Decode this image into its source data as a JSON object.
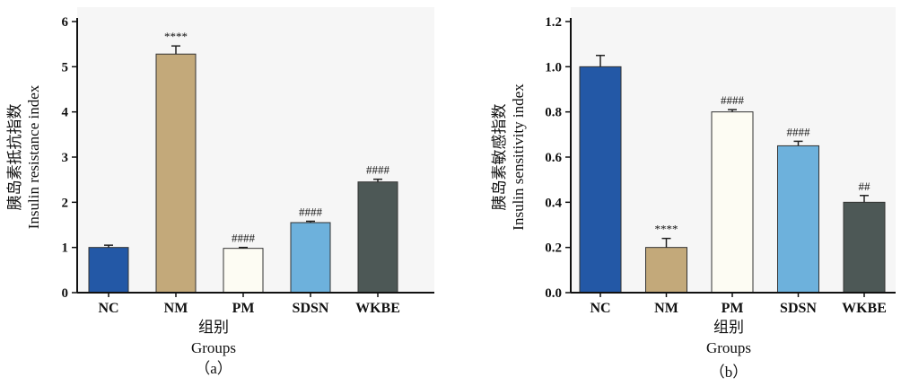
{
  "chart_data": [
    {
      "type": "bar",
      "panel_label": "（a）",
      "categories": [
        "NC",
        "NM",
        "PM",
        "SDSN",
        "WKBE"
      ],
      "values": [
        1.0,
        5.28,
        0.98,
        1.55,
        2.45
      ],
      "errors": [
        0.05,
        0.18,
        0.02,
        0.03,
        0.06
      ],
      "annotations": [
        "",
        "****",
        "####",
        "####",
        "####"
      ],
      "colors": [
        "#2358a6",
        "#c3a97a",
        "#fdfcf3",
        "#6db1dc",
        "#4d5856"
      ],
      "ylabel_cn": "胰岛素抵抗指数",
      "ylabel_en": "Insulin resistance index",
      "xlabel_cn": "组别",
      "xlabel_en": "Groups",
      "ylim": [
        0,
        6
      ],
      "yticks": [
        "0",
        "1",
        "2",
        "3",
        "4",
        "5",
        "6"
      ]
    },
    {
      "type": "bar",
      "panel_label": "（b）",
      "categories": [
        "NC",
        "NM",
        "PM",
        "SDSN",
        "WKBE"
      ],
      "values": [
        1.0,
        0.2,
        0.8,
        0.65,
        0.4
      ],
      "errors": [
        0.05,
        0.04,
        0.01,
        0.02,
        0.03
      ],
      "annotations": [
        "",
        "****",
        "####",
        "####",
        "##"
      ],
      "colors": [
        "#2358a6",
        "#c3a97a",
        "#fdfcf3",
        "#6db1dc",
        "#4d5856"
      ],
      "ylabel_cn": "胰岛素敏感指数",
      "ylabel_en": "Insulin sensitivity index",
      "xlabel_cn": "组别",
      "xlabel_en": "Groups",
      "ylim": [
        0,
        1.2
      ],
      "yticks": [
        "0.0",
        "0.2",
        "0.4",
        "0.6",
        "0.8",
        "1.0",
        "1.2"
      ]
    }
  ]
}
